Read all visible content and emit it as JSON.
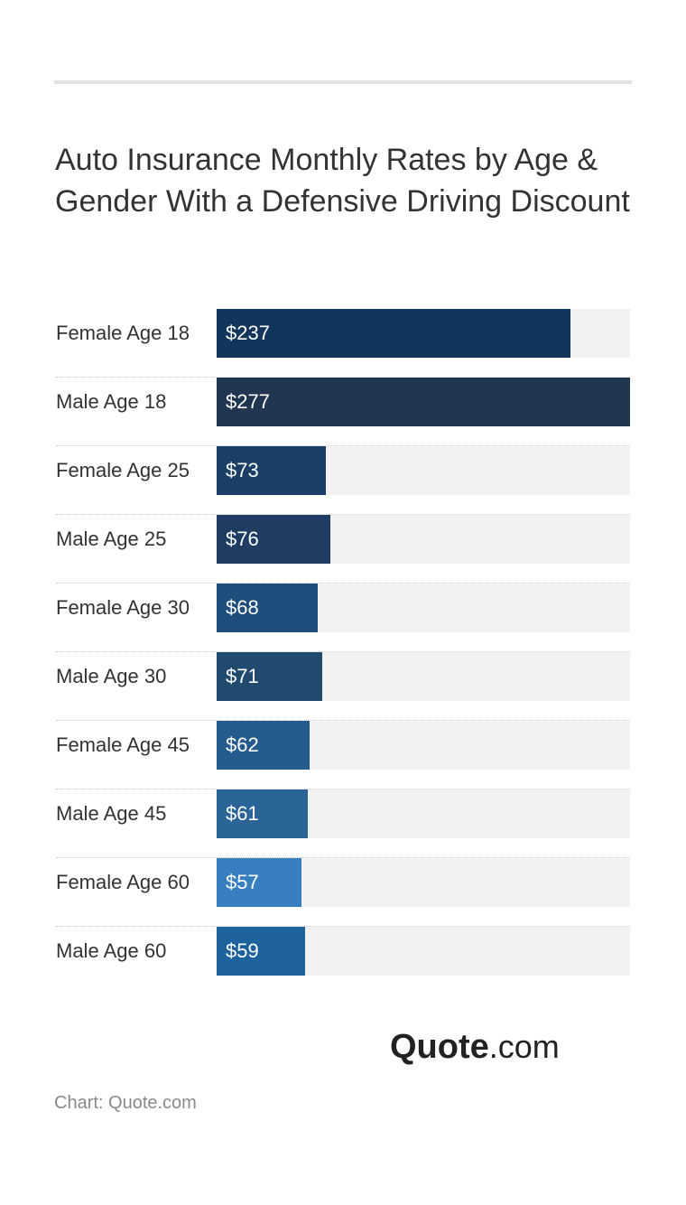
{
  "chart_data": {
    "type": "bar",
    "orientation": "horizontal",
    "title": "Auto Insurance Monthly Rates by Age & Gender With a Defensive Driving Discount",
    "categories": [
      "Female Age 18",
      "Male Age 18",
      "Female Age 25",
      "Male Age 25",
      "Female Age 30",
      "Male Age 30",
      "Female Age 45",
      "Male Age 45",
      "Female Age 60",
      "Male Age 60"
    ],
    "values": [
      237,
      277,
      73,
      76,
      68,
      71,
      62,
      61,
      57,
      59
    ],
    "value_labels": [
      "$237",
      "$277",
      "$73",
      "$76",
      "$68",
      "$71",
      "$62",
      "$61",
      "$57",
      "$59"
    ],
    "colors": [
      "#12355b",
      "#20354f",
      "#1b3f66",
      "#1f3d63",
      "#1f4e7c",
      "#204a6e",
      "#255b8e",
      "#2b6497",
      "#377fc0",
      "#1d629c"
    ],
    "xlim": [
      0,
      277
    ],
    "track_color": "#f2f2f2",
    "grid": false,
    "legend": "none"
  },
  "brand": {
    "main": "Quote",
    "tld": ".com"
  },
  "source": "Chart: Quote.com"
}
